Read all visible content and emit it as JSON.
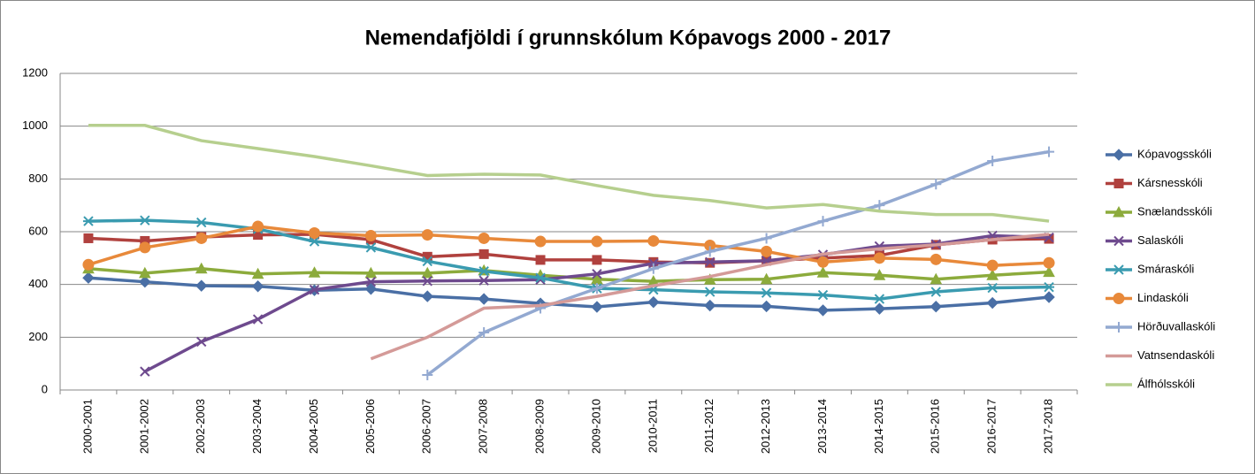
{
  "chart_data": {
    "type": "line",
    "title": "Nemendafjöldi í grunnskólum Kópavogs 2000 - 2017",
    "categories": [
      "2000-2001",
      "2001-2002",
      "2002-2003",
      "2003-2004",
      "2004-2005",
      "2005-2006",
      "2006-2007",
      "2007-2008",
      "2008-2009",
      "2009-2010",
      "2010-2011",
      "2011-2012",
      "2012-2013",
      "2013-2014",
      "2014-2015",
      "2015-2016",
      "2016-2017",
      "2017-2018"
    ],
    "ylim": [
      0,
      1200
    ],
    "yticks": [
      0,
      200,
      400,
      600,
      800,
      1000,
      1200
    ],
    "grid": true,
    "legend": "right",
    "series": [
      {
        "name": "Kópavogsskóli",
        "color": "#4a6fa5",
        "marker": "diamond",
        "values": [
          425,
          410,
          395,
          393,
          378,
          383,
          355,
          345,
          328,
          315,
          333,
          320,
          317,
          302,
          308,
          316,
          330,
          352
        ]
      },
      {
        "name": "Kársnesskóli",
        "color": "#b0413e",
        "marker": "square",
        "values": [
          575,
          565,
          580,
          588,
          590,
          570,
          505,
          515,
          493,
          493,
          485,
          482,
          490,
          500,
          510,
          550,
          570,
          573
        ]
      },
      {
        "name": "Snælandsskóli",
        "color": "#8cab3c",
        "marker": "triangle",
        "values": [
          460,
          443,
          460,
          440,
          445,
          443,
          443,
          453,
          435,
          420,
          412,
          418,
          420,
          445,
          435,
          420,
          435,
          447
        ]
      },
      {
        "name": "Salaskóli",
        "color": "#6e4a8e",
        "marker": "x",
        "values": [
          null,
          70,
          183,
          268,
          380,
          410,
          413,
          415,
          418,
          440,
          480,
          485,
          490,
          513,
          545,
          553,
          585,
          578
        ]
      },
      {
        "name": "Smáraskóli",
        "color": "#3a9bb0",
        "marker": "star",
        "values": [
          640,
          643,
          635,
          610,
          563,
          540,
          488,
          450,
          425,
          385,
          380,
          372,
          368,
          360,
          345,
          372,
          387,
          390
        ]
      },
      {
        "name": "Lindaskóli",
        "color": "#e8893a",
        "marker": "circle",
        "values": [
          475,
          540,
          575,
          620,
          595,
          585,
          588,
          575,
          563,
          563,
          565,
          548,
          525,
          485,
          500,
          495,
          472,
          482
        ]
      },
      {
        "name": "Hörðuvallaskóli",
        "color": "#93a9d1",
        "marker": "plus",
        "values": [
          null,
          null,
          null,
          null,
          null,
          null,
          57,
          218,
          310,
          385,
          460,
          525,
          575,
          640,
          700,
          780,
          868,
          903
        ]
      },
      {
        "name": "Vatnsendaskóli",
        "color": "#d49a98",
        "marker": "none",
        "values": [
          null,
          null,
          null,
          null,
          null,
          118,
          200,
          310,
          320,
          355,
          395,
          430,
          475,
          515,
          535,
          550,
          570,
          590
        ]
      },
      {
        "name": "Álfhólsskóli",
        "color": "#b6cf8e",
        "marker": "none",
        "values": [
          1003,
          1003,
          945,
          915,
          885,
          850,
          813,
          818,
          815,
          775,
          738,
          718,
          690,
          703,
          678,
          665,
          665,
          640
        ]
      }
    ]
  }
}
